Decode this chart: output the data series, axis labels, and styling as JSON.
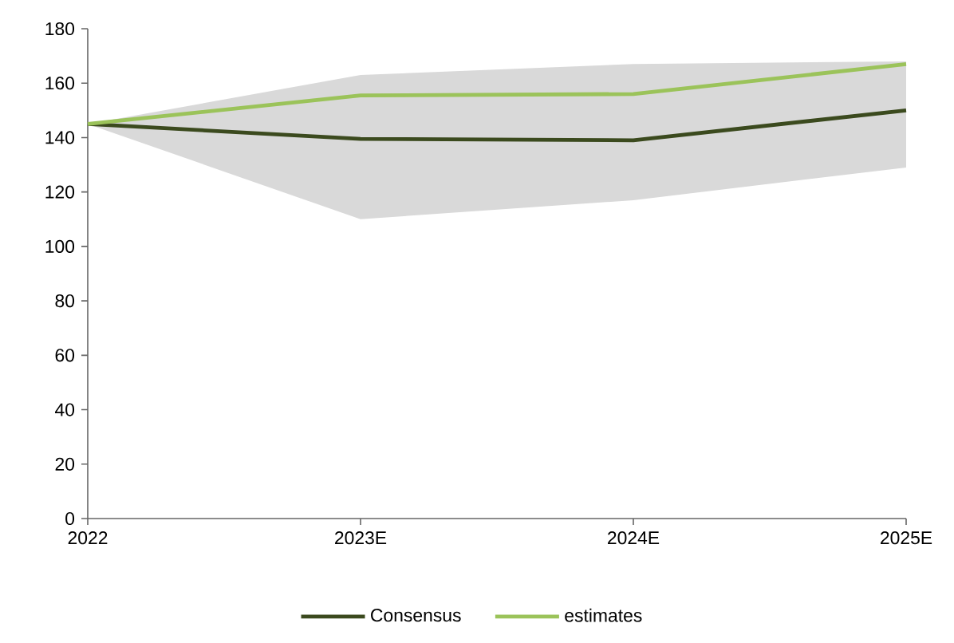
{
  "chart_data": {
    "type": "line",
    "categories": [
      "2022",
      "2023E",
      "2024E",
      "2025E"
    ],
    "series": [
      {
        "name": "Consensus",
        "color": "#3b4a1e",
        "values": [
          145,
          139.5,
          139,
          150
        ],
        "lower": [
          145,
          110,
          117,
          129
        ],
        "upper": [
          145,
          163,
          167,
          168
        ]
      },
      {
        "name": "estimates",
        "color": "#9bc35a",
        "values": [
          145,
          155.5,
          156,
          167
        ]
      }
    ],
    "ylim": [
      0,
      180
    ],
    "yticks": [
      0,
      20,
      40,
      60,
      80,
      100,
      120,
      140,
      160,
      180
    ],
    "grid": false,
    "legend": "bottom",
    "marker": "none",
    "line_style": "solid"
  }
}
